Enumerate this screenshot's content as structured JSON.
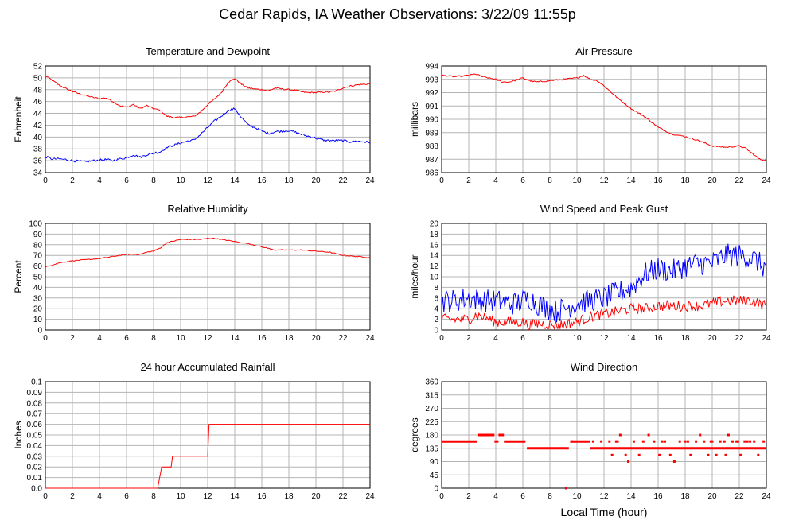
{
  "title": "Cedar Rapids, IA Weather Observations: 3/22/09 11:55p",
  "xlabel_bottom": "Local Time (hour)",
  "colors": {
    "red": "#ff0000",
    "blue": "#0000ff",
    "grid": "#b4b4b4",
    "axis": "#000000"
  },
  "chart_data": [
    {
      "id": "temp",
      "type": "line",
      "title": "Temperature and Dewpoint",
      "ylabel": "Fahrenheit",
      "xlim": [
        0,
        24
      ],
      "ylim": [
        34,
        52
      ],
      "xticks": [
        0,
        2,
        4,
        6,
        8,
        10,
        12,
        14,
        16,
        18,
        20,
        22,
        24
      ],
      "yticks": [
        34,
        36,
        38,
        40,
        42,
        44,
        46,
        48,
        50,
        52
      ],
      "grid": true,
      "series": [
        {
          "color": "red",
          "noise": 0.12,
          "x": [
            0,
            0.5,
            1,
            1.5,
            2,
            2.5,
            3,
            3.5,
            4,
            4.5,
            5,
            5.5,
            6,
            6.5,
            7,
            7.5,
            8,
            8.5,
            9,
            9.5,
            10,
            10.5,
            11,
            11.5,
            12,
            12.5,
            13,
            13.5,
            14,
            14.5,
            15,
            15.5,
            16,
            16.5,
            17,
            17.5,
            18,
            18.5,
            19,
            19.5,
            20,
            20.5,
            21,
            21.5,
            22,
            22.5,
            23,
            23.5,
            24
          ],
          "y": [
            50.4,
            49.6,
            48.8,
            48.2,
            47.7,
            47.3,
            47.0,
            46.7,
            46.5,
            46.6,
            46.0,
            45.3,
            45.0,
            45.5,
            44.8,
            45.3,
            44.8,
            44.5,
            43.5,
            43.3,
            43.3,
            43.4,
            43.5,
            44.3,
            45.5,
            46.4,
            47.5,
            49.2,
            49.9,
            48.9,
            48.3,
            48.1,
            48.0,
            47.8,
            48.3,
            48.1,
            48.0,
            47.9,
            47.6,
            47.5,
            47.5,
            47.6,
            47.6,
            47.8,
            48.3,
            48.6,
            48.8,
            48.9,
            49.0
          ]
        },
        {
          "color": "blue",
          "noise": 0.18,
          "x": [
            0,
            0.5,
            1,
            1.5,
            2,
            2.5,
            3,
            3.5,
            4,
            4.5,
            5,
            5.5,
            6,
            6.5,
            7,
            7.5,
            8,
            8.5,
            9,
            9.5,
            10,
            10.5,
            11,
            11.5,
            12,
            12.5,
            13,
            13.5,
            14,
            14.5,
            15,
            15.5,
            16,
            16.5,
            17,
            17.5,
            18,
            18.5,
            19,
            19.5,
            20,
            20.5,
            21,
            21.5,
            22,
            22.5,
            23,
            23.5,
            24
          ],
          "y": [
            36.7,
            36.3,
            36.3,
            36.2,
            36.0,
            35.9,
            35.8,
            36.0,
            36.1,
            36.2,
            36.0,
            36.3,
            36.5,
            37.0,
            36.6,
            37.0,
            37.3,
            37.5,
            38.3,
            38.6,
            39.0,
            39.3,
            39.5,
            40.5,
            41.6,
            42.7,
            43.5,
            44.5,
            44.8,
            43.3,
            42.0,
            41.6,
            41.0,
            40.6,
            40.9,
            41.0,
            41.1,
            40.8,
            40.4,
            40.1,
            39.8,
            39.5,
            39.4,
            39.4,
            39.4,
            39.2,
            39.3,
            39.2,
            39.1
          ]
        }
      ]
    },
    {
      "id": "pressure",
      "type": "line",
      "title": "Air Pressure",
      "ylabel": "millibars",
      "xlim": [
        0,
        24
      ],
      "ylim": [
        986,
        994
      ],
      "xticks": [
        0,
        2,
        4,
        6,
        8,
        10,
        12,
        14,
        16,
        18,
        20,
        22,
        24
      ],
      "yticks": [
        986,
        987,
        988,
        989,
        990,
        991,
        992,
        993,
        994
      ],
      "grid": true,
      "series": [
        {
          "color": "red",
          "noise": 0.05,
          "x": [
            0,
            1,
            2,
            2.5,
            3,
            4,
            4.5,
            5,
            6,
            6.5,
            7,
            8,
            9,
            10,
            10.5,
            11,
            11.5,
            12,
            13,
            14,
            15,
            16,
            17,
            18,
            19,
            20,
            21,
            22,
            22.5,
            23,
            23.5,
            24
          ],
          "y": [
            993.3,
            993.2,
            993.3,
            993.4,
            993.2,
            993.0,
            992.8,
            992.8,
            993.1,
            992.9,
            992.8,
            992.9,
            993.0,
            993.1,
            993.3,
            993.0,
            992.9,
            992.5,
            991.6,
            990.8,
            990.2,
            989.4,
            988.9,
            988.7,
            988.4,
            988.0,
            987.9,
            988.0,
            987.8,
            987.4,
            987.0,
            986.9
          ]
        }
      ]
    },
    {
      "id": "humidity",
      "type": "line",
      "title": "Relative Humidity",
      "ylabel": "Percent",
      "xlim": [
        0,
        24
      ],
      "ylim": [
        0,
        100
      ],
      "xticks": [
        0,
        2,
        4,
        6,
        8,
        10,
        12,
        14,
        16,
        18,
        20,
        22,
        24
      ],
      "yticks": [
        0,
        10,
        20,
        30,
        40,
        50,
        60,
        70,
        80,
        90,
        100
      ],
      "grid": true,
      "series": [
        {
          "color": "red",
          "noise": 0.4,
          "x": [
            0,
            0.5,
            1,
            2,
            3,
            4,
            5,
            6,
            7,
            7.5,
            8,
            8.5,
            9,
            10,
            11,
            11.5,
            12,
            12.5,
            13,
            14,
            15,
            16,
            17,
            18,
            19,
            20,
            21,
            22,
            23,
            24
          ],
          "y": [
            59,
            61,
            63,
            65,
            66,
            67,
            69,
            71,
            71,
            73,
            74,
            77,
            82,
            85,
            85,
            85,
            86,
            86,
            85,
            83,
            81,
            78,
            75,
            75,
            75,
            74,
            73,
            70,
            69,
            68
          ]
        }
      ]
    },
    {
      "id": "wind",
      "type": "line",
      "title": "Wind Speed and Peak Gust",
      "ylabel": "miles/hour",
      "xlim": [
        0,
        24
      ],
      "ylim": [
        0,
        20
      ],
      "xticks": [
        0,
        2,
        4,
        6,
        8,
        10,
        12,
        14,
        16,
        18,
        20,
        22,
        24
      ],
      "yticks": [
        0,
        2,
        4,
        6,
        8,
        10,
        12,
        14,
        16,
        18,
        20
      ],
      "grid": true,
      "series": [
        {
          "color": "blue",
          "noise": 2.2,
          "x": [
            0,
            1,
            2,
            3,
            4,
            5,
            5.5,
            6,
            6.5,
            7,
            7.5,
            8,
            8.5,
            9,
            9.5,
            10,
            11,
            12,
            13,
            14,
            15,
            16,
            17,
            18,
            19,
            20,
            21,
            22,
            23,
            24
          ],
          "y": [
            5.5,
            5.5,
            6,
            5.5,
            5.5,
            5,
            5,
            5.5,
            6,
            5,
            4.5,
            4,
            3.5,
            4,
            4.5,
            5,
            5.5,
            6,
            7,
            8,
            10.5,
            11.5,
            11,
            12,
            12.5,
            12.5,
            14,
            14,
            13.5,
            11.5
          ]
        },
        {
          "color": "red",
          "noise": 1.0,
          "x": [
            0,
            2,
            2.5,
            3,
            4,
            5,
            6,
            6.5,
            7,
            8,
            9,
            10,
            11,
            12,
            13,
            14,
            15,
            16,
            17,
            18,
            19,
            20,
            21,
            22,
            23,
            24
          ],
          "y": [
            2,
            2,
            2.8,
            2.5,
            1.5,
            1.5,
            1.5,
            0.8,
            1.2,
            1.0,
            1.0,
            1.5,
            2.5,
            3,
            3.5,
            4,
            4,
            4.5,
            4.5,
            4.5,
            4.5,
            5,
            5.5,
            5.5,
            5.5,
            4.5
          ]
        }
      ]
    },
    {
      "id": "rain",
      "type": "line",
      "title": "24 hour Accumulated Rainfall",
      "ylabel": "Inches",
      "xlim": [
        0,
        24
      ],
      "ylim": [
        0,
        0.1
      ],
      "xticks": [
        0,
        2,
        4,
        6,
        8,
        10,
        12,
        14,
        16,
        18,
        20,
        22,
        24
      ],
      "yticks": [
        0.0,
        0.01,
        0.02,
        0.03,
        0.04,
        0.05,
        0.06,
        0.07,
        0.08,
        0.09,
        0.1
      ],
      "ytick_labels": [
        "0.0",
        "0.01",
        "0.02",
        "0.03",
        "0.04",
        "0.05",
        "0.06",
        "0.07",
        "0.08",
        "0.09",
        "0.1"
      ],
      "grid": true,
      "series": [
        {
          "color": "red",
          "noise": 0,
          "x": [
            0,
            8.3,
            8.6,
            9.3,
            9.4,
            12.0,
            12.1,
            24
          ],
          "y": [
            0,
            0,
            0.02,
            0.02,
            0.03,
            0.03,
            0.06,
            0.06
          ]
        }
      ]
    },
    {
      "id": "direction",
      "type": "scatter",
      "title": "Wind Direction",
      "ylabel": "degrees",
      "xlim": [
        0,
        24
      ],
      "ylim": [
        0,
        360
      ],
      "xticks": [
        0,
        2,
        4,
        6,
        8,
        10,
        12,
        14,
        16,
        18,
        20,
        22,
        24
      ],
      "yticks": [
        0,
        45,
        90,
        135,
        180,
        225,
        270,
        315,
        360
      ],
      "grid": true,
      "series": [
        {
          "color": "red",
          "segments": [
            {
              "x0": 0.0,
              "x1": 2.6,
              "y": 158
            },
            {
              "x0": 2.7,
              "x1": 3.9,
              "y": 180
            },
            {
              "x0": 3.9,
              "x1": 4.2,
              "y": 158
            },
            {
              "x0": 4.2,
              "x1": 4.6,
              "y": 180
            },
            {
              "x0": 4.6,
              "x1": 6.2,
              "y": 158
            },
            {
              "x0": 6.3,
              "x1": 9.4,
              "y": 135
            },
            {
              "x0": 9.5,
              "x1": 11.0,
              "y": 158
            },
            {
              "x0": 11.0,
              "x1": 24.0,
              "y": 135
            }
          ],
          "points": [
            [
              9.2,
              0
            ],
            [
              9.6,
              158
            ],
            [
              11.2,
              158
            ],
            [
              11.8,
              158
            ],
            [
              12.4,
              158
            ],
            [
              12.9,
              158
            ],
            [
              13.2,
              180
            ],
            [
              13.6,
              112
            ],
            [
              13.8,
              90
            ],
            [
              14.2,
              158
            ],
            [
              14.6,
              112
            ],
            [
              14.9,
              158
            ],
            [
              15.3,
              180
            ],
            [
              15.7,
              158
            ],
            [
              16.1,
              112
            ],
            [
              16.5,
              158
            ],
            [
              16.9,
              112
            ],
            [
              17.2,
              90
            ],
            [
              17.6,
              158
            ],
            [
              18.0,
              158
            ],
            [
              18.4,
              112
            ],
            [
              18.8,
              158
            ],
            [
              19.1,
              180
            ],
            [
              19.4,
              158
            ],
            [
              19.7,
              112
            ],
            [
              20.0,
              158
            ],
            [
              20.3,
              112
            ],
            [
              20.6,
              158
            ],
            [
              20.9,
              158
            ],
            [
              21.2,
              180
            ],
            [
              21.5,
              158
            ],
            [
              21.8,
              158
            ],
            [
              22.1,
              112
            ],
            [
              22.4,
              158
            ],
            [
              22.8,
              158
            ],
            [
              23.1,
              158
            ],
            [
              23.4,
              112
            ],
            [
              23.8,
              158
            ],
            [
              12.6,
              112
            ],
            [
              13.0,
              158
            ],
            [
              16.3,
              158
            ],
            [
              18.2,
              158
            ],
            [
              19.9,
              158
            ],
            [
              21.9,
              158
            ],
            [
              22.6,
              158
            ],
            [
              21.0,
              112
            ]
          ]
        }
      ]
    }
  ]
}
